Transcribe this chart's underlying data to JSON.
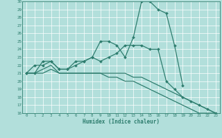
{
  "xlabel": "Humidex (Indice chaleur)",
  "x_values": [
    0,
    1,
    2,
    3,
    4,
    5,
    6,
    7,
    8,
    9,
    10,
    11,
    12,
    13,
    14,
    15,
    16,
    17,
    18,
    19,
    20,
    21,
    22,
    23
  ],
  "line1": [
    21.0,
    22.0,
    22.0,
    22.5,
    21.5,
    21.5,
    22.5,
    22.5,
    23.0,
    25.0,
    25.0,
    24.5,
    23.0,
    25.5,
    30.0,
    30.0,
    29.0,
    28.5,
    24.5,
    19.5,
    null,
    null,
    null,
    null
  ],
  "line2": [
    21.0,
    21.0,
    22.5,
    22.5,
    21.5,
    21.5,
    22.0,
    22.5,
    23.0,
    22.5,
    23.0,
    23.5,
    24.5,
    24.5,
    24.5,
    24.0,
    24.0,
    20.0,
    19.0,
    18.0,
    17.5,
    17.0,
    16.5,
    16.0
  ],
  "line3": [
    21.0,
    21.0,
    21.5,
    22.0,
    21.0,
    21.0,
    21.0,
    21.0,
    21.0,
    21.0,
    21.0,
    21.0,
    21.0,
    20.5,
    20.5,
    20.0,
    19.5,
    19.0,
    18.5,
    18.0,
    17.5,
    17.0,
    16.5,
    16.0
  ],
  "line4": [
    21.0,
    21.0,
    21.0,
    21.5,
    21.0,
    21.0,
    21.0,
    21.0,
    21.0,
    21.0,
    20.5,
    20.5,
    20.0,
    20.0,
    19.5,
    19.0,
    18.5,
    18.0,
    17.5,
    17.0,
    16.5,
    16.0,
    16.0,
    16.0
  ],
  "color": "#2e7d6e",
  "bg_color": "#b2dfdb",
  "grid_color": "#ffffff",
  "ylim": [
    16,
    30
  ],
  "xlim": [
    -0.5,
    23.5
  ],
  "yticks": [
    16,
    17,
    18,
    19,
    20,
    21,
    22,
    23,
    24,
    25,
    26,
    27,
    28,
    29,
    30
  ],
  "xticks": [
    0,
    1,
    2,
    3,
    4,
    5,
    6,
    7,
    8,
    9,
    10,
    11,
    12,
    13,
    14,
    15,
    16,
    17,
    18,
    19,
    20,
    21,
    22,
    23
  ],
  "markersize": 2.0,
  "linewidth": 0.9
}
